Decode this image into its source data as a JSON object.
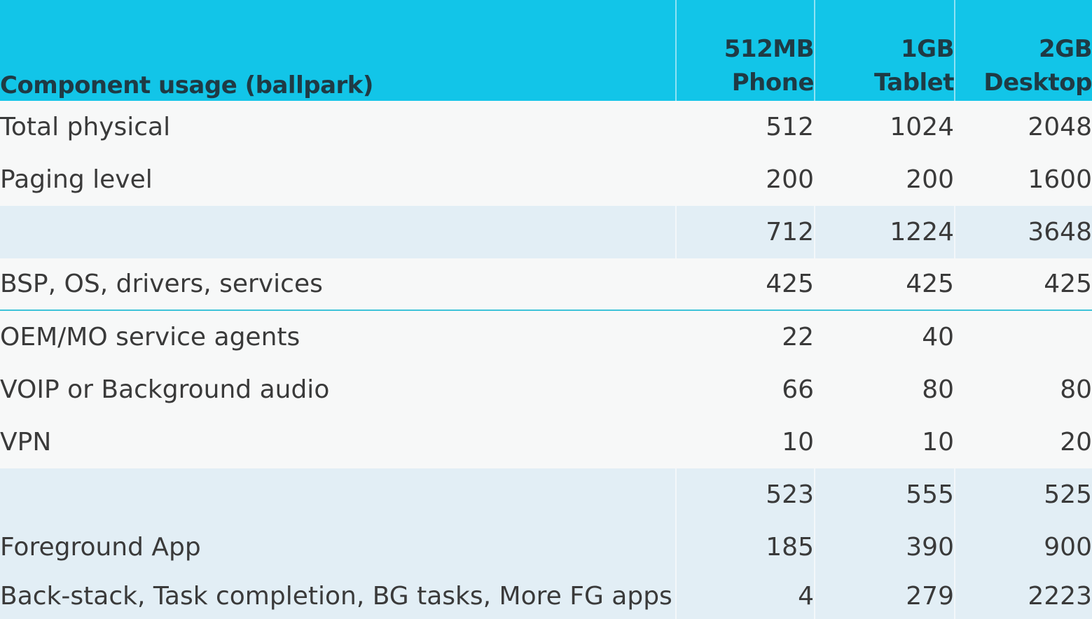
{
  "header": {
    "title": "Component usage (ballpark)",
    "columns": [
      {
        "line1": "512MB",
        "line2": "Phone"
      },
      {
        "line1": "1GB",
        "line2": "Tablet"
      },
      {
        "line1": "2GB",
        "line2": "Desktop"
      }
    ]
  },
  "rows": [
    {
      "label": "Total physical",
      "values": [
        "512",
        "1024",
        "2048"
      ]
    },
    {
      "label": "Paging level",
      "values": [
        "200",
        "200",
        "1600"
      ]
    },
    {
      "label": "",
      "values": [
        "712",
        "1224",
        "3648"
      ]
    },
    {
      "label": "BSP, OS, drivers, services",
      "values": [
        "425",
        "425",
        "425"
      ]
    },
    {
      "label": "OEM/MO service agents",
      "values": [
        "22",
        "40",
        ""
      ]
    },
    {
      "label": "VOIP or Background audio",
      "values": [
        "66",
        "80",
        "80"
      ]
    },
    {
      "label": "VPN",
      "values": [
        "10",
        "10",
        "20"
      ]
    },
    {
      "label": "",
      "values": [
        "523",
        "555",
        "525"
      ]
    },
    {
      "label": "Foreground App",
      "values": [
        "185",
        "390",
        "900"
      ]
    },
    {
      "label": "Back-stack, Task completion, BG tasks, More FG apps",
      "values": [
        "4",
        "279",
        "2223"
      ]
    }
  ],
  "colors": {
    "header_bg": "#12c5e8",
    "header_text": "#1f3a44",
    "row_light": "#f7f8f8",
    "row_blue": "#e2eef5",
    "divider": "#3ec3d8"
  }
}
